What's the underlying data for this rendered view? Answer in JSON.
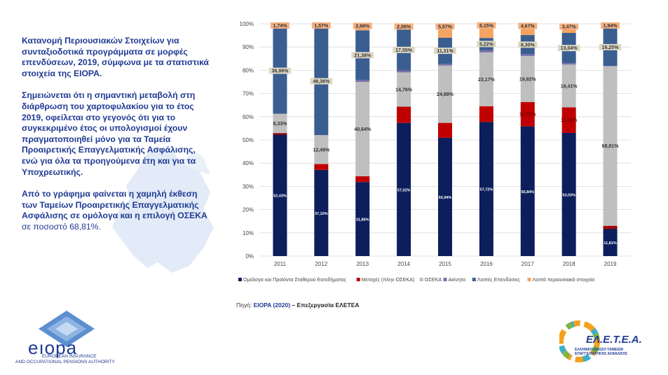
{
  "text": {
    "p1": "Κατανομή Περιουσιακών Στοιχείων για συνταξιοδοτικά προγράμματα σε μορφές επενδύσεων, 2019, σύμφωνα με τα στατιστικά στοιχεία της EIOPA.",
    "p2": "Σημειώνεται ότι η σημαντική μεταβολή στη διάρθρωση του χαρτοφυλακίου για το έτος 2019, οφείλεται στο γεγονός ότι για το συγκεκριμένο έτος οι υπολογισμοί έχουν πραγματοποιηθεί μόνο για τα Ταμεία Προαιρετικής Επαγγελματικής Ασφάλισης, ενώ για όλα τα προηγούμενα έτη και για τα Υποχρεωτικής.",
    "p3": "Από το γράφημα φαίνεται η χαμηλή έκθεση των Ταμείων Προαιρετικής Επαγγελματικής Ασφάλισης σε ομόλογα και η επιλογή ΟΣΕΚΑ",
    "p3_plain": "σε ποσοστό 68,81%."
  },
  "source": {
    "prefix": "Πηγή:",
    "org": "EIOPA (2020)",
    "suffix": "– Επεξεργασία ΕΛΕΤΕΑ"
  },
  "logos": {
    "eiopa_name": "eıopa",
    "eiopa_line1": "EUROPEAN INSURANCE",
    "eiopa_line2": "AND OCCUPATIONAL PENSIONS AUTHORITY",
    "eletea_name": "ΕΛ.Ε.Τ.Ε.Α.",
    "eletea_line1": "ΕΛΛΗΝΙΚΗ ΕΝΩΣΗ ΤΑΜΕΙΩΝ",
    "eletea_line2": "ΕΠΑΓΓΕΛΜΑΤΙΚΗΣ ΑΣΦΑΛΙΣΗΣ"
  },
  "chart_data": {
    "type": "bar",
    "stacked": true,
    "ylim": [
      0,
      100
    ],
    "yticks": [
      "0%",
      "10%",
      "20%",
      "30%",
      "40%",
      "50%",
      "60%",
      "70%",
      "80%",
      "90%",
      "100%"
    ],
    "categories": [
      "2011",
      "2012",
      "2013",
      "2014",
      "2015",
      "2016",
      "2017",
      "2018",
      "2019"
    ],
    "legend_position": "bottom",
    "series": [
      {
        "name": "Ομόλογα και Προϊόντα Σταθερού Εισοδήματος",
        "color": "#0d1e5c",
        "values": [
          52.43,
          37.1,
          31.86,
          57.32,
          50.94,
          57.72,
          55.84,
          53.03,
          11.81
        ],
        "labels": [
          "52,43%",
          "37,10%",
          "31,86%",
          "57,32%",
          "50,94%",
          "57,72%",
          "55,84%",
          "53,03%",
          "11,81%"
        ]
      },
      {
        "name": "Μετοχές (πλην ΟΣΕΚΑ)",
        "color": "#c00000",
        "values": [
          0.52,
          2.5,
          2.5,
          7.0,
          6.4,
          6.8,
          10.5,
          11.0,
          1.2
        ],
        "labels": [
          "0,52%",
          "",
          "",
          "",
          "",
          "",
          "10,50%",
          "11,00%",
          "1,21%"
        ]
      },
      {
        "name": "ΟΣΕΚΑ",
        "color": "#bfbfbf",
        "values": [
          8.33,
          12.49,
          40.64,
          14.76,
          24.68,
          23.17,
          19.82,
          18.41,
          68.81
        ],
        "labels": [
          "8,33%",
          "12,49%",
          "40,64%",
          "14,76%",
          "24,68%",
          "23,17%",
          "19,82%",
          "18,41%",
          "68,81%"
        ]
      },
      {
        "name": "Ακίνητα",
        "color": "#7b6fa8",
        "values": [
          0.0,
          0.0,
          0.8,
          0.9,
          0.7,
          1.0,
          0.7,
          0.6,
          0.0
        ],
        "labels": [
          "",
          "",
          "",
          "",
          "",
          "",
          "",
          "",
          ""
        ]
      },
      {
        "name": "Λοιπές Επενδύσεις",
        "color": "#3b5e91",
        "values": [
          36.99,
          46.36,
          21.38,
          17.55,
          11.31,
          5.22,
          8.3,
          13.04,
          16.25
        ],
        "labels": [
          "36,99%",
          "46,36%",
          "21,38%",
          "17,55%",
          "11,31%",
          "5,22%",
          "8,30%",
          "13,04%",
          "16,25%"
        ]
      },
      {
        "name": "Λοιπά περιουσιακά στοιχεία",
        "color": "#f4a460",
        "values": [
          1.74,
          1.57,
          2.66,
          2.06,
          5.57,
          6.15,
          4.67,
          3.47,
          1.94
        ],
        "labels": [
          "1,74%",
          "1,57%",
          "2,66%",
          "2,06%",
          "5,57%",
          "6,15%",
          "4,67%",
          "3,47%",
          "1,94%"
        ]
      }
    ]
  }
}
